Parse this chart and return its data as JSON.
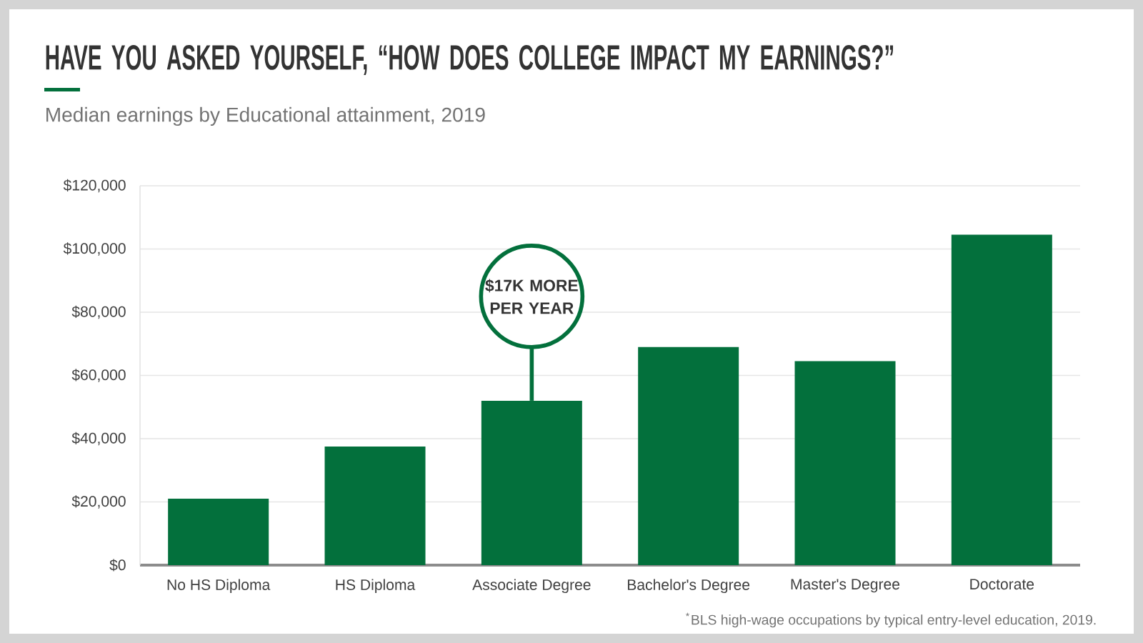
{
  "chart_data": {
    "type": "bar",
    "title": "HAVE YOU ASKED YOURSELF, “HOW DOES COLLEGE IMPACT MY EARNINGS?”",
    "subtitle": "Median earnings by Educational attainment, 2019",
    "categories": [
      "No HS Diploma",
      "HS Diploma",
      "Associate Degree",
      "Bachelor's Degree",
      "Master's Degree",
      "Doctorate"
    ],
    "values": [
      21000,
      37500,
      52000,
      69000,
      64500,
      104500
    ],
    "color": "#03703c",
    "ylim": [
      0,
      120000
    ],
    "yticks": [
      {
        "value": 0,
        "label": "$0"
      },
      {
        "value": 20000,
        "label": "$20,000"
      },
      {
        "value": 40000,
        "label": "$40,000"
      },
      {
        "value": 60000,
        "label": "$60,000"
      },
      {
        "value": 80000,
        "label": "$80,000"
      },
      {
        "value": 100000,
        "label": "$100,000"
      },
      {
        "value": 120000,
        "label": "$120,000"
      }
    ],
    "grid": "y",
    "annotations": [
      "$17K MORE PER YEAR",
      "$^{*}$BLS high-wage occupations by typical entry-level education, 2019."
    ]
  }
}
